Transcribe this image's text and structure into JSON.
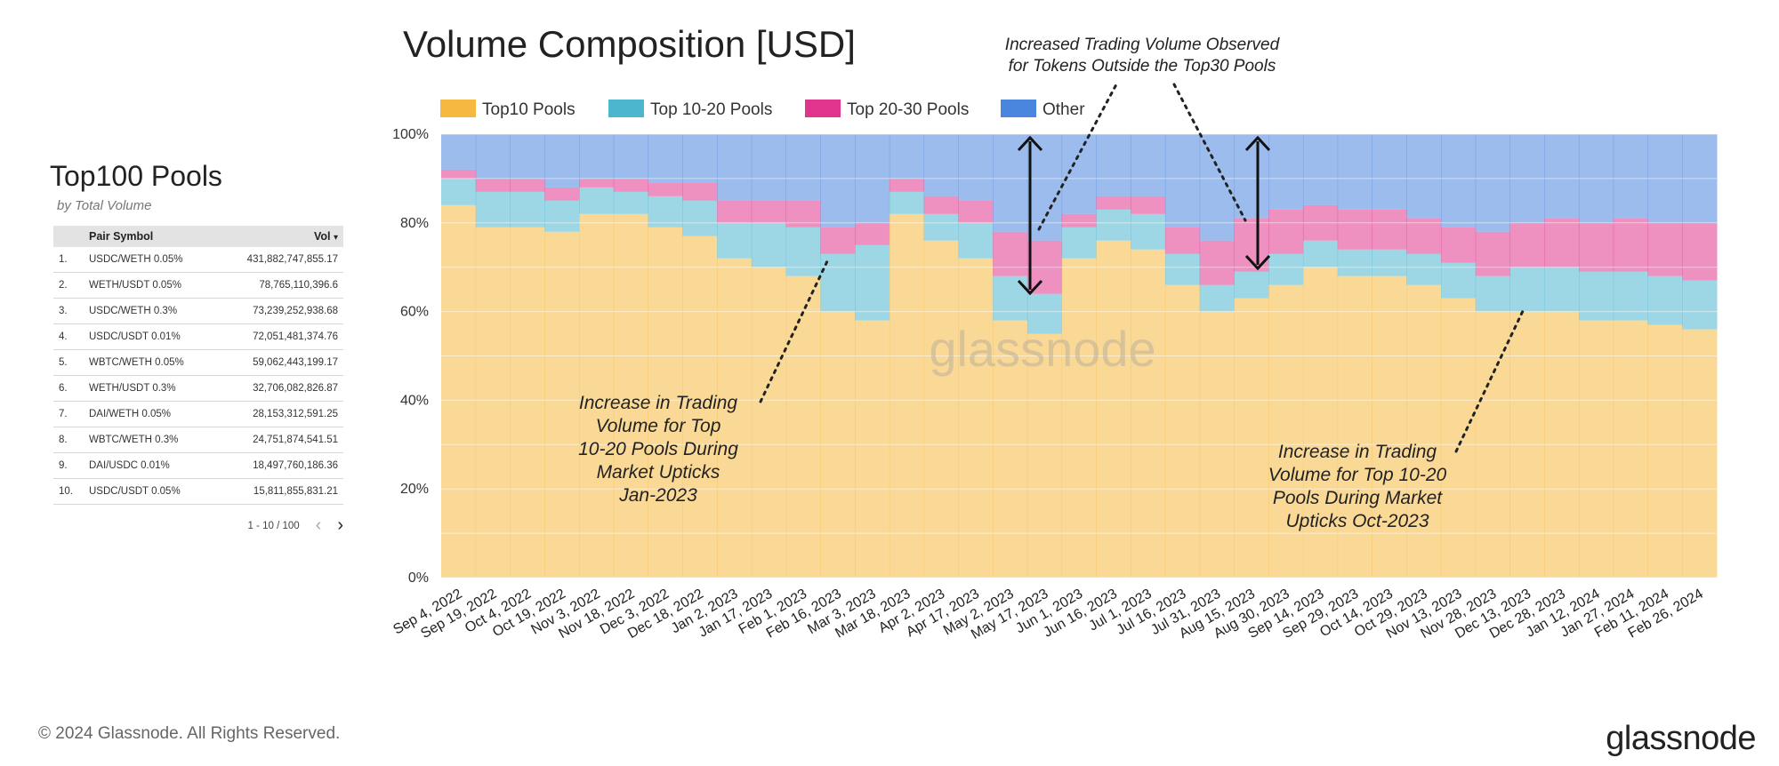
{
  "left_panel": {
    "title": "Top100 Pools",
    "subtitle": "by Total Volume",
    "table": {
      "headers": [
        "Pair Symbol",
        "Vol"
      ],
      "sort_indicator": "▾",
      "rows": [
        {
          "rank": "1.",
          "pair": "USDC/WETH 0.05%",
          "vol": "431,882,747,855.17"
        },
        {
          "rank": "2.",
          "pair": "WETH/USDT 0.05%",
          "vol": "78,765,110,396.6"
        },
        {
          "rank": "3.",
          "pair": "USDC/WETH 0.3%",
          "vol": "73,239,252,938.68"
        },
        {
          "rank": "4.",
          "pair": "USDC/USDT 0.01%",
          "vol": "72,051,481,374.76"
        },
        {
          "rank": "5.",
          "pair": "WBTC/WETH 0.05%",
          "vol": "59,062,443,199.17"
        },
        {
          "rank": "6.",
          "pair": "WETH/USDT 0.3%",
          "vol": "32,706,082,826.87"
        },
        {
          "rank": "7.",
          "pair": "DAI/WETH 0.05%",
          "vol": "28,153,312,591.25"
        },
        {
          "rank": "8.",
          "pair": "WBTC/WETH 0.3%",
          "vol": "24,751,874,541.51"
        },
        {
          "rank": "9.",
          "pair": "DAI/USDC 0.01%",
          "vol": "18,497,760,186.36"
        },
        {
          "rank": "10.",
          "pair": "USDC/USDT 0.05%",
          "vol": "15,811,855,831.21"
        }
      ]
    },
    "pagination": {
      "range": "1 - 10 / 100",
      "prev_icon": "chevron-left-icon",
      "next_icon": "chevron-right-icon"
    }
  },
  "footer": {
    "copyright": "© 2024 Glassnode. All Rights Reserved.",
    "logo": "glassnode"
  },
  "chart_data": {
    "type": "bar",
    "stacked": true,
    "percent_stacked": true,
    "title": "Volume Composition [USD]",
    "xlabel": "",
    "ylabel": "",
    "ylim": [
      0,
      100
    ],
    "yticks": [
      "0%",
      "20%",
      "40%",
      "60%",
      "80%",
      "100%"
    ],
    "xticks": [
      "Sep 4, 2022",
      "Sep 19, 2022",
      "Oct 4, 2022",
      "Oct 19, 2022",
      "Nov 3, 2022",
      "Nov 18, 2022",
      "Dec 3, 2022",
      "Dec 18, 2022",
      "Jan 2, 2023",
      "Jan 17, 2023",
      "Feb 1, 2023",
      "Feb 16, 2023",
      "Mar 3, 2023",
      "Mar 18, 2023",
      "Apr 2, 2023",
      "Apr 17, 2023",
      "May 2, 2023",
      "May 17, 2023",
      "Jun 1, 2023",
      "Jun 16, 2023",
      "Jul 1, 2023",
      "Jul 16, 2023",
      "Jul 31, 2023",
      "Aug 15, 2023",
      "Aug 30, 2023",
      "Sep 14, 2023",
      "Sep 29, 2023",
      "Oct 14, 2023",
      "Oct 29, 2023",
      "Nov 13, 2023",
      "Nov 28, 2023",
      "Dec 13, 2023",
      "Dec 28, 2023",
      "Jan 12, 2024",
      "Jan 27, 2024",
      "Feb 11, 2024",
      "Feb 26, 2024"
    ],
    "grid": true,
    "legend_position": "top",
    "watermark": "glassnode",
    "colors": {
      "Top10 Pools": "#F5B942",
      "Top 10-20 Pools": "#4DB6CF",
      "Top 20-30 Pools": "#E0348D",
      "Other": "#4A85DE"
    },
    "series": [
      {
        "name": "Top10 Pools",
        "values": [
          84,
          79,
          79,
          78,
          82,
          82,
          79,
          77,
          72,
          70,
          68,
          60,
          58,
          82,
          76,
          72,
          58,
          55,
          72,
          76,
          74,
          66,
          60,
          63,
          66,
          70,
          68,
          68,
          66,
          63,
          60,
          60,
          60,
          58,
          58,
          57,
          56
        ]
      },
      {
        "name": "Top 10-20 Pools",
        "values": [
          6,
          8,
          8,
          7,
          6,
          5,
          7,
          8,
          8,
          10,
          11,
          13,
          17,
          5,
          6,
          8,
          10,
          9,
          7,
          7,
          8,
          7,
          6,
          6,
          7,
          6,
          6,
          6,
          7,
          8,
          8,
          10,
          10,
          11,
          11,
          11,
          11
        ]
      },
      {
        "name": "Top 20-30 Pools",
        "values": [
          2,
          3,
          3,
          3,
          2,
          3,
          3,
          4,
          5,
          5,
          6,
          6,
          5,
          3,
          4,
          5,
          10,
          12,
          3,
          3,
          4,
          6,
          10,
          12,
          10,
          8,
          9,
          9,
          8,
          8,
          10,
          10,
          11,
          11,
          12,
          12,
          13
        ]
      },
      {
        "name": "Other",
        "values": [
          8,
          10,
          10,
          12,
          10,
          10,
          11,
          11,
          15,
          15,
          15,
          21,
          20,
          10,
          14,
          15,
          22,
          24,
          18,
          14,
          14,
          21,
          24,
          19,
          17,
          16,
          17,
          17,
          19,
          21,
          22,
          20,
          19,
          20,
          19,
          20,
          20
        ]
      }
    ],
    "annotations": [
      {
        "text": [
          "Increase in Trading",
          "Volume for Top",
          "10-20 Pools During",
          "Market Upticks",
          "Jan-2023"
        ]
      },
      {
        "text": [
          "Increased Trading Volume Observed",
          "for Tokens Outside the Top30 Pools"
        ]
      },
      {
        "text": [
          "Increase in Trading",
          "Volume for Top 10-20",
          "Pools During Market",
          "Upticks Oct-2023"
        ]
      }
    ]
  }
}
